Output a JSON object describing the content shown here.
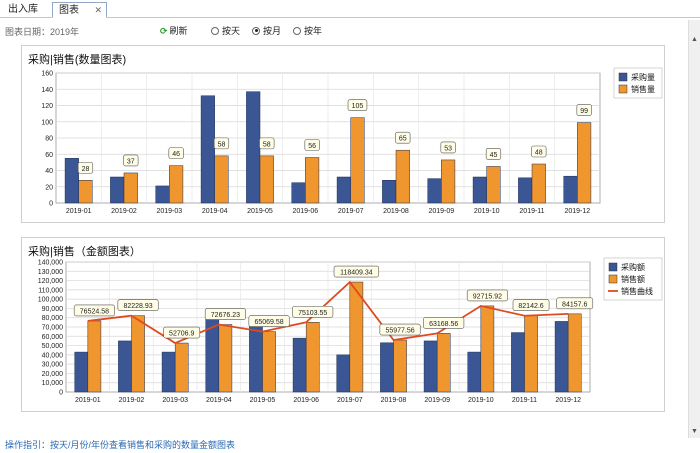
{
  "tabs": [
    {
      "label": "出入库"
    },
    {
      "label": "图表"
    }
  ],
  "icons": {
    "close": "close-icon",
    "refresh": "refresh-icon",
    "radio": "radio-icon"
  },
  "toolbar": {
    "date_label": "图表日期：2019年",
    "refresh_label": "刷新",
    "radios": [
      {
        "label": "按天",
        "checked": false
      },
      {
        "label": "按月",
        "checked": true
      },
      {
        "label": "按年",
        "checked": false
      }
    ]
  },
  "colors": {
    "purchase": "#3a5694",
    "sales": "#f0962e",
    "curve": "#e04a1e",
    "label_bg": "#fffde6"
  },
  "chart_data": [
    {
      "type": "bar",
      "title": "采购|销售(数量图表)",
      "categories": [
        "2019-01",
        "2019-02",
        "2019-03",
        "2019-04",
        "2019-05",
        "2019-06",
        "2019-07",
        "2019-08",
        "2019-09",
        "2019-10",
        "2019-11",
        "2019-12"
      ],
      "series": [
        {
          "name": "采购量",
          "values": [
            55,
            32,
            21,
            132,
            137,
            25,
            32,
            28,
            30,
            32,
            31,
            33
          ]
        },
        {
          "name": "销售量",
          "values": [
            28,
            37,
            46,
            58,
            58,
            56,
            105,
            65,
            53,
            45,
            48,
            99
          ]
        }
      ],
      "data_labels": [
        "28",
        "37",
        "46",
        "58",
        "58",
        "56",
        "105",
        "65",
        "53",
        "45",
        "48",
        "99"
      ],
      "ylim": [
        0,
        160
      ],
      "yticks": [
        "0",
        "20",
        "40",
        "60",
        "80",
        "100",
        "120",
        "140",
        "160"
      ],
      "grid": true,
      "legend": "top-right"
    },
    {
      "type": "bar",
      "title": "采购|销售（金额图表）",
      "categories": [
        "2019-01",
        "2019-02",
        "2019-03",
        "2019-04",
        "2019-05",
        "2019-06",
        "2019-07",
        "2019-08",
        "2019-09",
        "2019-10",
        "2019-11",
        "2019-12"
      ],
      "series": [
        {
          "name": "采购额",
          "values": [
            43000,
            55000,
            43000,
            79000,
            75000,
            58000,
            40000,
            53000,
            55000,
            43000,
            64000,
            76000
          ]
        },
        {
          "name": "销售额",
          "values": [
            76524.58,
            82228.93,
            52706.9,
            72676.23,
            65069.58,
            75103.55,
            118409.34,
            55977.56,
            63168.56,
            92715.92,
            82142.6,
            84157.6
          ]
        },
        {
          "name": "销售曲线",
          "type": "line",
          "values": [
            76524.58,
            82228.93,
            52706.9,
            72676.23,
            65069.58,
            75103.55,
            118409.34,
            55977.56,
            63168.56,
            92715.92,
            82142.6,
            84157.6
          ]
        }
      ],
      "data_labels": [
        "76524.58",
        "82228.93",
        "52706.9",
        "72676.23",
        "65069.58",
        "75103.55",
        "118409.34",
        "55977.56",
        "63168.56",
        "92715.92",
        "82142.6",
        "84157.6"
      ],
      "ylim": [
        0,
        140000
      ],
      "yticks": [
        "0",
        "10,000",
        "20,000",
        "30,000",
        "40,000",
        "50,000",
        "60,000",
        "70,000",
        "80,000",
        "90,000",
        "100,000",
        "110,000",
        "120,000",
        "130,000",
        "140,000"
      ],
      "grid": true,
      "legend": "top-right"
    }
  ],
  "footer": {
    "text": "操作指引：按天/月份/年份查看销售和采购的数量金额图表"
  }
}
